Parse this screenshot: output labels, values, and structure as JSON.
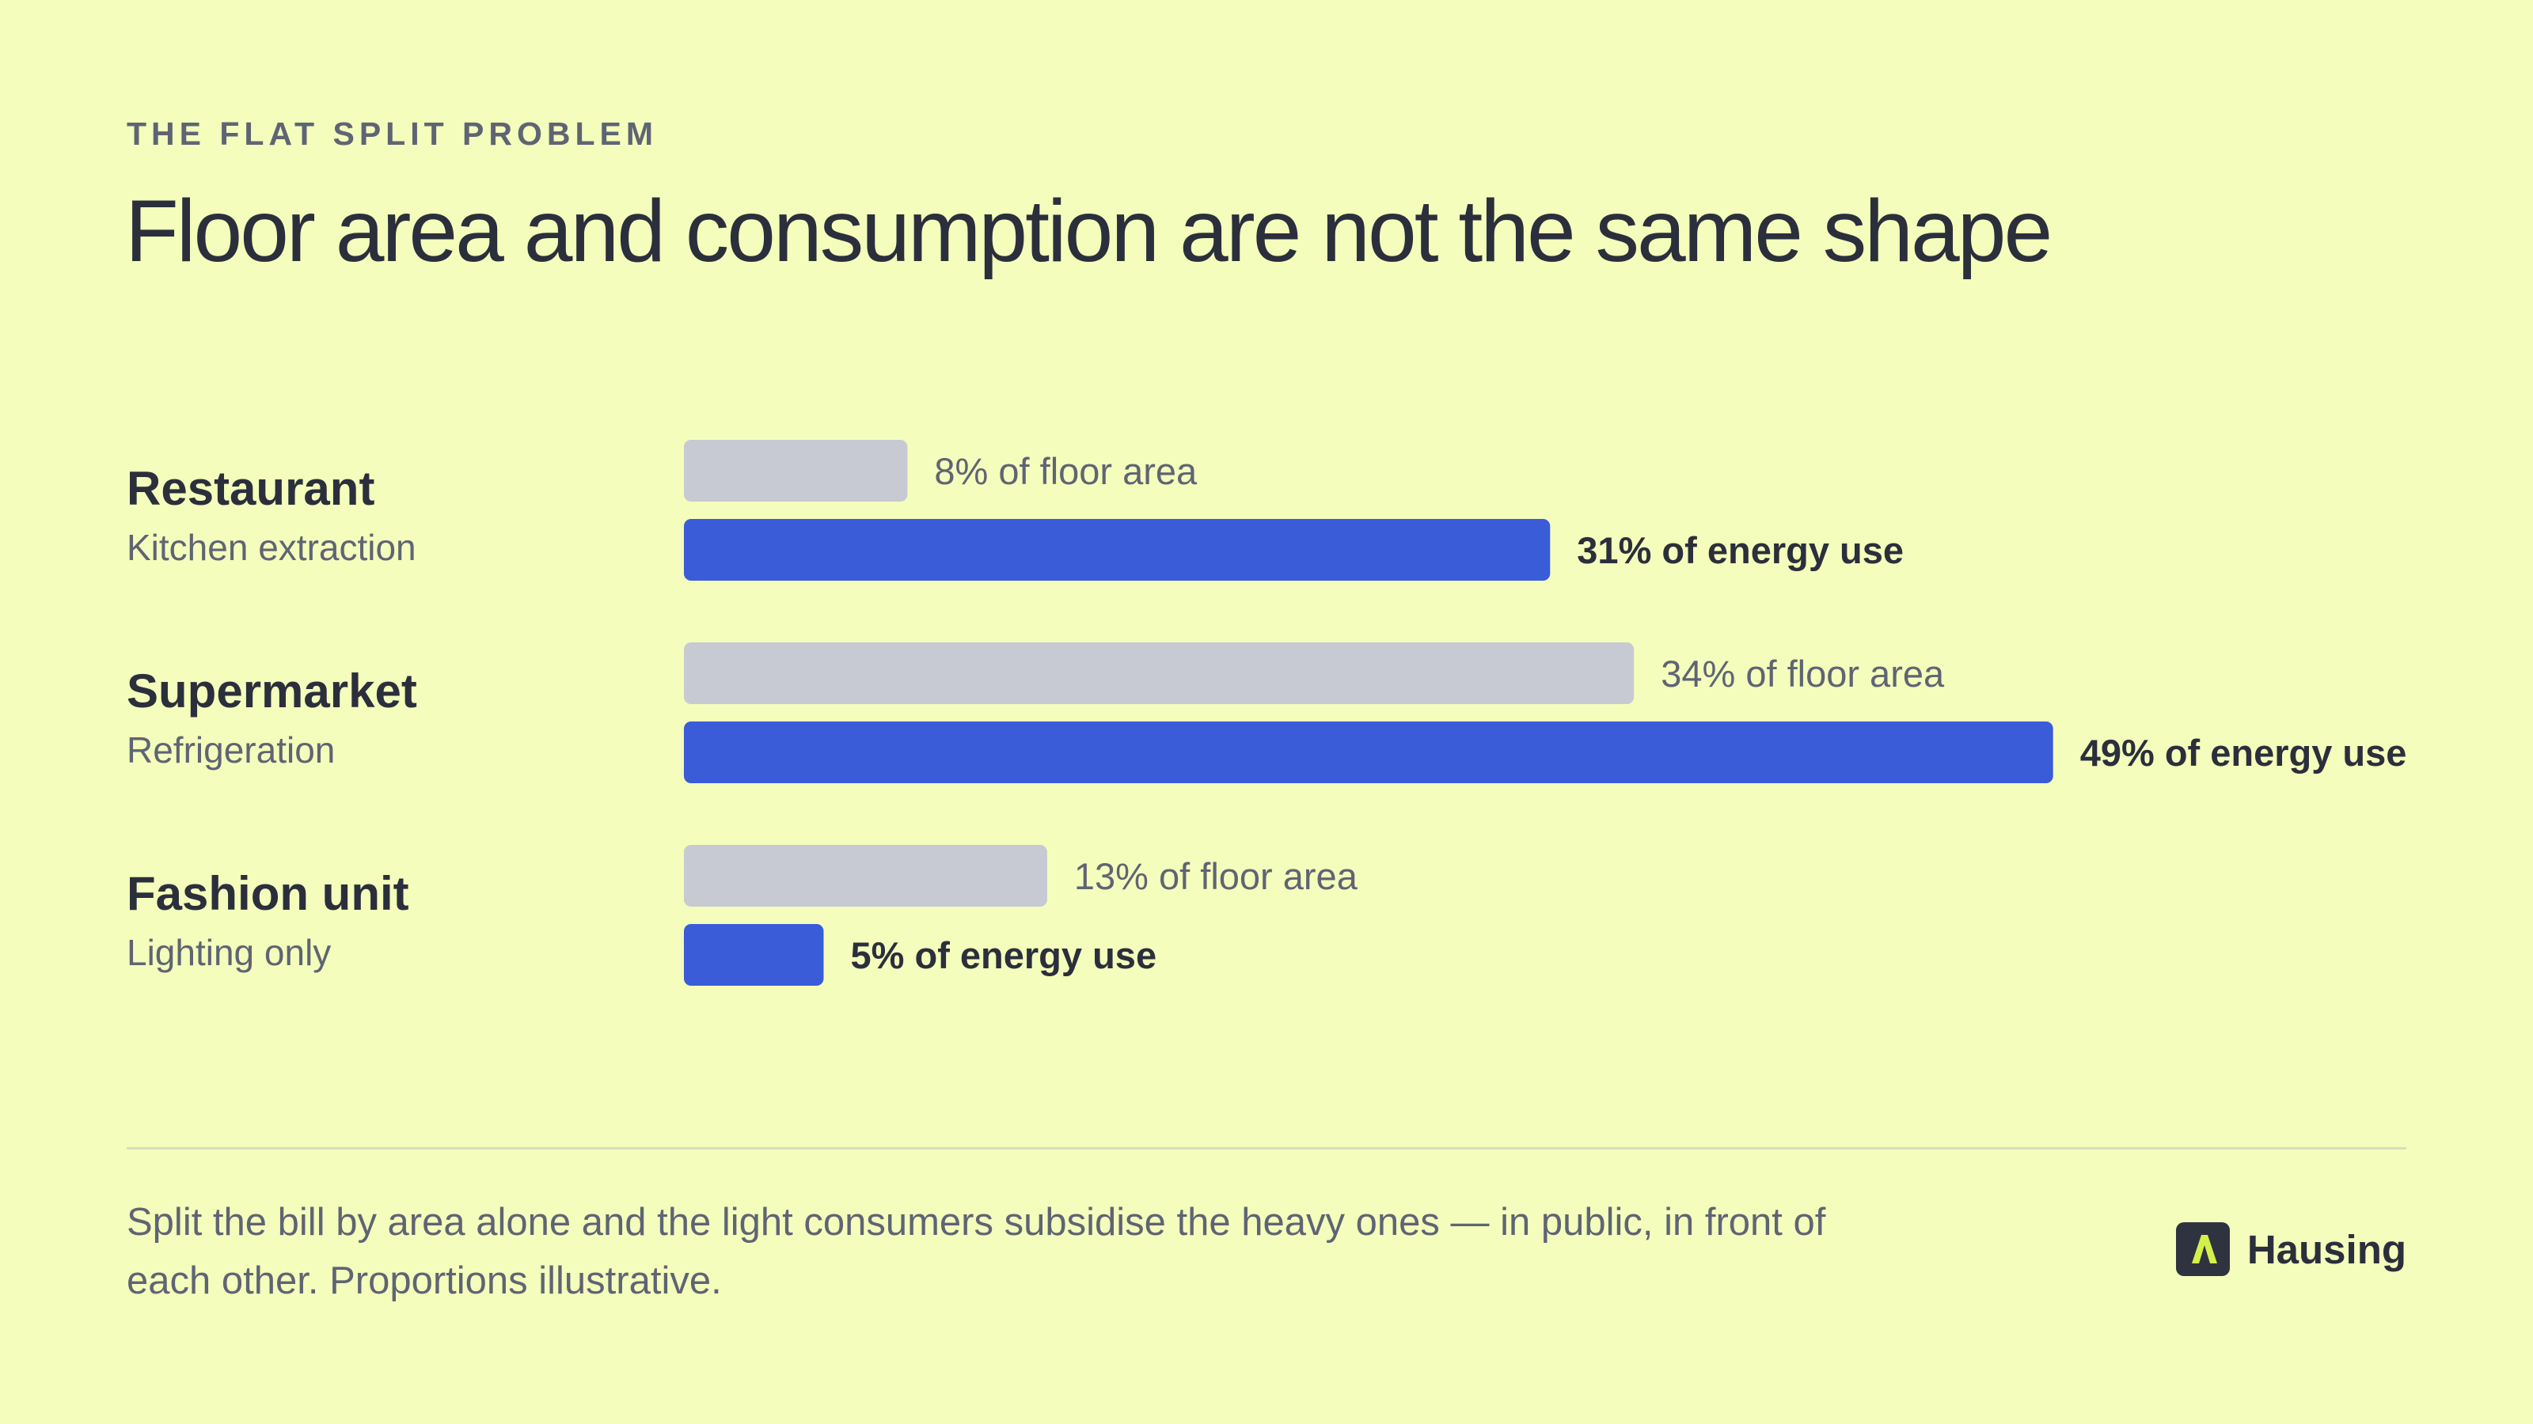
{
  "header": {
    "eyebrow": "THE FLAT SPLIT PROBLEM",
    "title": "Floor area and consumption are not the same shape"
  },
  "colors": {
    "background": "#f4fdbb",
    "floor_bar": "#c7c9d3",
    "energy_bar": "#3a5cd8",
    "text_dark": "#2b2f3c",
    "text_muted": "#5f6474",
    "brand_accent": "#d4f04a"
  },
  "chart_data": {
    "type": "bar",
    "orientation": "horizontal",
    "categories": [
      "Restaurant",
      "Supermarket",
      "Fashion unit"
    ],
    "category_subtitles": [
      "Kitchen extraction",
      "Refrigeration",
      "Lighting only"
    ],
    "series": [
      {
        "key": "floor",
        "values": [
          8,
          34,
          13
        ],
        "labels": [
          "8% of floor area",
          "34% of floor area",
          "13% of floor area"
        ]
      },
      {
        "key": "energy",
        "values": [
          31,
          49,
          5
        ],
        "labels": [
          "31% of energy use",
          "49% of energy use",
          "5% of energy use"
        ]
      }
    ],
    "unit": "%",
    "xlim": [
      0,
      49
    ],
    "grid": false,
    "legend": "none"
  },
  "footer": {
    "note": "Split the bill by area alone and the light consumers subsidise the heavy ones — in public, in front of each other. Proportions illustrative.",
    "brand_name": "Hausing",
    "brand_icon": "hausing-logo-icon"
  }
}
